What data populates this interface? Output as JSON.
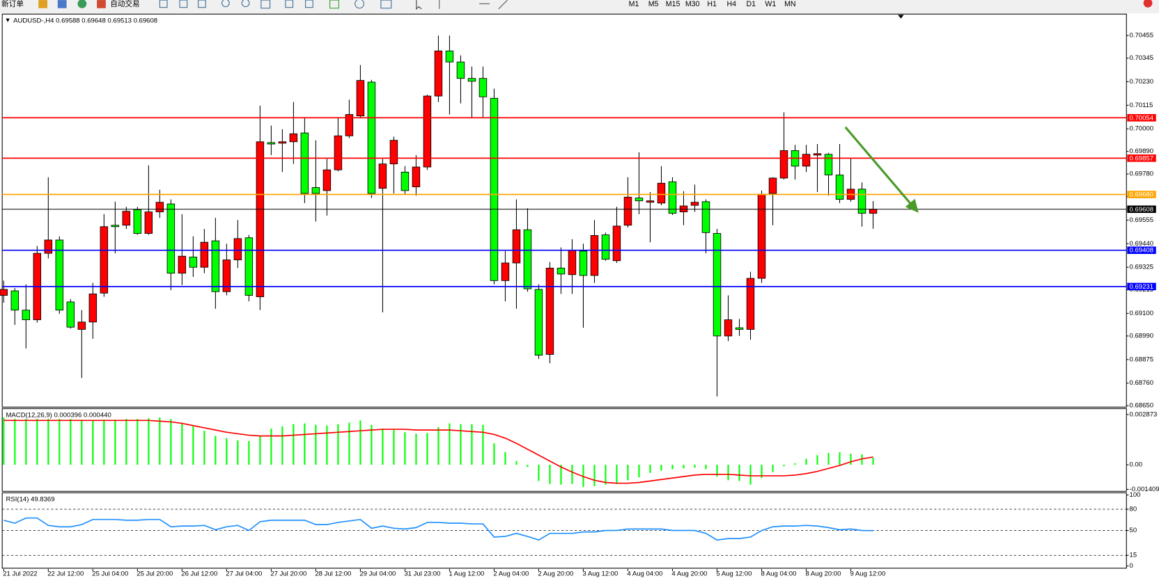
{
  "toolbar": {
    "buttons": [
      "新订单",
      "自动交易"
    ],
    "timeframes": [
      "M1",
      "M5",
      "M15",
      "M30",
      "H1",
      "H4",
      "D1",
      "W1",
      "MN"
    ]
  },
  "chart_data": [
    {
      "type": "candlestick",
      "title": "AUDUSD-,H4  0.69588 0.69648 0.69513 0.69608",
      "categories": [
        "21 Jul 2022",
        null,
        null,
        null,
        "22 Jul 12:00",
        null,
        null,
        null,
        "25 Jul 04:00",
        null,
        null,
        null,
        "25 Jul 20:00",
        null,
        null,
        null,
        "26 Jul 12:00",
        null,
        null,
        null,
        "27 Jul 04:00",
        null,
        null,
        null,
        "27 Jul 20:00",
        null,
        null,
        null,
        "28 Jul 12:00",
        null,
        null,
        null,
        "29 Jul 04:00",
        null,
        null,
        null,
        "31 Jul 23:00",
        null,
        null,
        null,
        "1 Aug 12:00",
        null,
        null,
        null,
        "2 Aug 04:00",
        null,
        null,
        null,
        "2 Aug 20:00",
        null,
        null,
        null,
        "3 Aug 12:00",
        null,
        null,
        null,
        "4 Aug 04:00",
        null,
        null,
        null,
        "4 Aug 20:00",
        null,
        null,
        null,
        "5 Aug 12:00",
        null,
        null,
        null,
        "8 Aug 04:00",
        null,
        null,
        null,
        "8 Aug 20:00",
        null,
        null,
        null,
        "9 Aug 12:00",
        null,
        null
      ],
      "open": [
        0.69188,
        0.6921,
        0.69116,
        0.69069,
        0.69393,
        0.69458,
        0.69156,
        0.69022,
        0.69058,
        0.69199,
        0.6953,
        0.6953,
        0.69606,
        0.6949,
        0.69595,
        0.69634,
        0.69296,
        0.69375,
        0.69325,
        0.69454,
        0.69206,
        0.69361,
        0.69469,
        0.69181,
        0.69933,
        0.6993,
        0.69937,
        0.6998,
        0.69714,
        0.69699,
        0.698,
        0.69966,
        0.70063,
        0.70228,
        0.6971,
        0.69829,
        0.69789,
        0.69717,
        0.69814,
        0.7016,
        0.7038,
        0.70326,
        0.70246,
        0.70246,
        0.70149,
        0.6926,
        0.69346,
        0.69508,
        0.69217,
        0.689,
        0.69321,
        0.69289,
        0.69404,
        0.69285,
        0.69483,
        0.69357,
        0.6953,
        0.69663,
        0.69642,
        0.69638,
        0.69742,
        0.69595,
        0.69627,
        0.69645,
        0.6949,
        0.6899,
        0.6903,
        0.69022,
        0.69271,
        0.69685,
        0.6976,
        0.69894,
        0.69818,
        0.69872,
        0.69876,
        0.69775,
        0.69656,
        0.69706,
        0.69588
      ],
      "high": [
        0.6926,
        0.69224,
        0.69242,
        0.69429,
        0.69764,
        0.69476,
        0.6917,
        0.69116,
        0.69249,
        0.69584,
        0.69645,
        0.6962,
        0.6962,
        0.69822,
        0.69703,
        0.69656,
        0.69584,
        0.69476,
        0.69512,
        0.69566,
        0.6944,
        0.69555,
        0.69483,
        0.70113,
        0.70016,
        0.69998,
        0.70131,
        0.70052,
        0.69944,
        0.69854,
        0.70052,
        0.70142,
        0.70311,
        0.70239,
        0.69854,
        0.69962,
        0.69818,
        0.69872,
        0.70167,
        0.70455,
        0.70455,
        0.70358,
        0.70304,
        0.70304,
        0.70196,
        0.69404,
        0.69656,
        0.69613,
        0.69242,
        0.6935,
        0.69422,
        0.69462,
        0.6944,
        0.69555,
        0.69494,
        0.6962,
        0.69764,
        0.69886,
        0.69692,
        0.69818,
        0.69764,
        0.69696,
        0.69728,
        0.69656,
        0.69512,
        0.69188,
        0.69073,
        0.69303,
        0.69699,
        0.69764,
        0.70081,
        0.69922,
        0.69922,
        0.69926,
        0.69883,
        0.69926,
        0.69858,
        0.69739,
        0.69648
      ],
      "low": [
        0.69152,
        0.69044,
        0.68929,
        0.69055,
        0.69368,
        0.69098,
        0.69026,
        0.68785,
        0.68976,
        0.69181,
        0.69393,
        0.69512,
        0.69483,
        0.69483,
        0.69566,
        0.69213,
        0.69238,
        0.69278,
        0.69296,
        0.69123,
        0.69188,
        0.69321,
        0.69159,
        0.69116,
        0.69872,
        0.69789,
        0.69829,
        0.69638,
        0.69548,
        0.69577,
        0.69793,
        0.69955,
        0.70052,
        0.69663,
        0.69105,
        0.69685,
        0.69681,
        0.69674,
        0.698,
        0.70131,
        0.7007,
        0.70124,
        0.70052,
        0.70052,
        0.69242,
        0.69159,
        0.69123,
        0.69206,
        0.68878,
        0.68857,
        0.69195,
        0.69195,
        0.6903,
        0.69249,
        0.69357,
        0.69346,
        0.69519,
        0.69584,
        0.69447,
        0.69627,
        0.6958,
        0.6953,
        0.69595,
        0.69393,
        0.68695,
        0.68965,
        0.6899,
        0.68972,
        0.69249,
        0.6953,
        0.69753,
        0.69753,
        0.69789,
        0.69692,
        0.69674,
        0.69638,
        0.69645,
        0.69523,
        0.69513
      ],
      "close": [
        0.69217,
        0.69116,
        0.69069,
        0.69393,
        0.69458,
        0.69116,
        0.69033,
        0.69058,
        0.69195,
        0.69523,
        0.69523,
        0.69598,
        0.6949,
        0.69595,
        0.69642,
        0.69296,
        0.69379,
        0.69325,
        0.69447,
        0.69206,
        0.69361,
        0.69465,
        0.69188,
        0.69937,
        0.69926,
        0.69937,
        0.69976,
        0.69685,
        0.69685,
        0.698,
        0.69966,
        0.7007,
        0.70236,
        0.69685,
        0.69829,
        0.69944,
        0.69699,
        0.69814,
        0.7016,
        0.7038,
        0.70326,
        0.70246,
        0.70232,
        0.70156,
        0.6926,
        0.69346,
        0.69508,
        0.6922,
        0.68896,
        0.69321,
        0.69292,
        0.69408,
        0.69285,
        0.6948,
        0.69364,
        0.69526,
        0.69667,
        0.69649,
        0.69649,
        0.69735,
        0.69588,
        0.69624,
        0.69642,
        0.69494,
        0.6899,
        0.69069,
        0.69022,
        0.69271,
        0.69681,
        0.6976,
        0.69894,
        0.69818,
        0.69876,
        0.69879,
        0.69775,
        0.69656,
        0.69706,
        0.69588,
        0.69608
      ],
      "up_color": "#ff0000",
      "down_color": "#00ff00",
      "ylim": [
        0.68643,
        0.70556
      ],
      "yticks": [
        0.70455,
        0.70345,
        {
          "value": 0.7023,
          "label": "0.70230"
        },
        0.70115,
        {
          "value": 0.7,
          "label": "0.70000"
        },
        {
          "value": 0.6989,
          "label": "0.69890"
        },
        {
          "value": 0.6978,
          "label": "0.69780"
        },
        {
          "value": 0.6967,
          "label": "0.69670"
        },
        0.69555,
        {
          "value": 0.6944,
          "label": "0.69440"
        },
        0.69325,
        0.69215,
        {
          "value": 0.691,
          "label": "0.69100"
        },
        {
          "value": 0.6899,
          "label": "0.68990"
        },
        0.68875,
        {
          "value": 0.6876,
          "label": "0.68760"
        },
        {
          "value": 0.6865,
          "label": "0.68650"
        }
      ],
      "levels": [
        {
          "value": 0.70054,
          "color": "#ff0000"
        },
        {
          "value": 0.69857,
          "color": "#ff0000"
        },
        {
          "value": 0.6968,
          "label": "0.69680",
          "color": "#ffa500"
        },
        {
          "value": 0.69408,
          "color": "#0000ff"
        },
        {
          "value": 0.69231,
          "color": "#0000ff"
        },
        {
          "value": 0.69608,
          "color": "#000000"
        }
      ]
    },
    {
      "type": "macd",
      "title": "MACD(12,26,9) 0.000396 0.000440",
      "ylim": [
        -0.001521,
        0.003169
      ],
      "yticks": [
        0.002873,
        {
          "value": 0,
          "label": "0.00"
        },
        -0.001409
      ],
      "series": [
        {
          "kind": "bar",
          "color": "#00ff00",
          "values": [
            0.002704,
            0.00262,
            0.00262,
            0.00262,
            0.00262,
            0.00262,
            0.00262,
            0.002577,
            0.002535,
            0.002577,
            0.002577,
            0.00262,
            0.00262,
            0.002662,
            0.002704,
            0.00262,
            0.002408,
            0.002197,
            0.001944,
            0.001648,
            0.001521,
            0.001394,
            0.001352,
            0.001648,
            0.00207,
            0.002197,
            0.002324,
            0.002366,
            0.002282,
            0.002239,
            0.002324,
            0.002408,
            0.002535,
            0.002282,
            0.00207,
            0.001986,
            0.001859,
            0.001775,
            0.001817,
            0.002155,
            0.002366,
            0.002324,
            0.002324,
            0.002282,
            0.001225,
            0.000718,
            0.000211,
            -0.000127,
            -0.00093,
            -0.001099,
            -0.001141,
            -0.001099,
            -0.001268,
            -0.001225,
            -0.001141,
            -0.001099,
            -0.000887,
            -0.000718,
            -0.000465,
            -0.000338,
            -0.000254,
            -0.000211,
            -0.000169,
            -0.000254,
            -0.000676,
            -0.000887,
            -0.00093,
            -0.001141,
            -0.000761,
            -0.000423,
            -8.5e-05,
            8.5e-05,
            0.000338,
            0.000549,
            0.000676,
            0.000718,
            0.000634,
            0.000592,
            0.000396
          ]
        },
        {
          "kind": "line",
          "color": "#ff0000",
          "values": [
            0.002535,
            0.002535,
            0.002535,
            0.002535,
            0.002535,
            0.002535,
            0.002535,
            0.002535,
            0.002535,
            0.002535,
            0.002535,
            0.002535,
            0.002535,
            0.002535,
            0.002493,
            0.002451,
            0.002366,
            0.002239,
            0.002113,
            0.001986,
            0.001859,
            0.001775,
            0.00169,
            0.001648,
            0.001648,
            0.001648,
            0.00169,
            0.001733,
            0.001775,
            0.001817,
            0.001859,
            0.001901,
            0.001944,
            0.001986,
            0.002028,
            0.002028,
            0.002028,
            0.001986,
            0.001986,
            0.001986,
            0.001986,
            0.001944,
            0.001901,
            0.001859,
            0.001733,
            0.001521,
            0.001225,
            0.000887,
            0.000549,
            0.000211,
            -0.000127,
            -0.000423,
            -0.000676,
            -0.000887,
            -0.001014,
            -0.001056,
            -0.001056,
            -0.001014,
            -0.00093,
            -0.000845,
            -0.000761,
            -0.000676,
            -0.000592,
            -0.000549,
            -0.000549,
            -0.000549,
            -0.000592,
            -0.000634,
            -0.000634,
            -0.000634,
            -0.000634,
            -0.000592,
            -0.000507,
            -0.00038,
            -0.000211,
            -4.2e-05,
            0.000169,
            0.000338,
            0.00044
          ]
        }
      ]
    },
    {
      "type": "rsi",
      "title": "RSI(14) 49.8369",
      "ylim": [
        0,
        100
      ],
      "yticks": [
        0,
        15,
        50,
        80,
        100
      ],
      "series": [
        {
          "kind": "line",
          "color": "#1e90ff",
          "values": [
            64.5,
            60.3,
            67.6,
            67.6,
            57.2,
            55.2,
            55.2,
            58.3,
            65.5,
            65.5,
            65.5,
            64.5,
            64.5,
            65.5,
            65.5,
            55.2,
            56.2,
            56.2,
            57.2,
            51.0,
            55.2,
            57.2,
            50,
            62.4,
            64.5,
            64.5,
            64.5,
            64.5,
            58.3,
            58.3,
            61.4,
            63.4,
            65.5,
            53.1,
            56.2,
            53.1,
            52.1,
            54.1,
            61.4,
            61.4,
            60.3,
            60.3,
            59.3,
            59.3,
            40.7,
            41.7,
            45.9,
            41.7,
            36.6,
            45.9,
            45.9,
            45.9,
            47.9,
            47.9,
            50,
            50,
            52.1,
            52.1,
            52.1,
            52.1,
            50,
            50,
            50,
            45.9,
            36.6,
            38.6,
            38.6,
            40.7,
            50,
            55.2,
            56.2,
            56.2,
            57.2,
            56.2,
            54.1,
            51.0,
            52.1,
            50,
            49.8369
          ]
        }
      ]
    }
  ]
}
